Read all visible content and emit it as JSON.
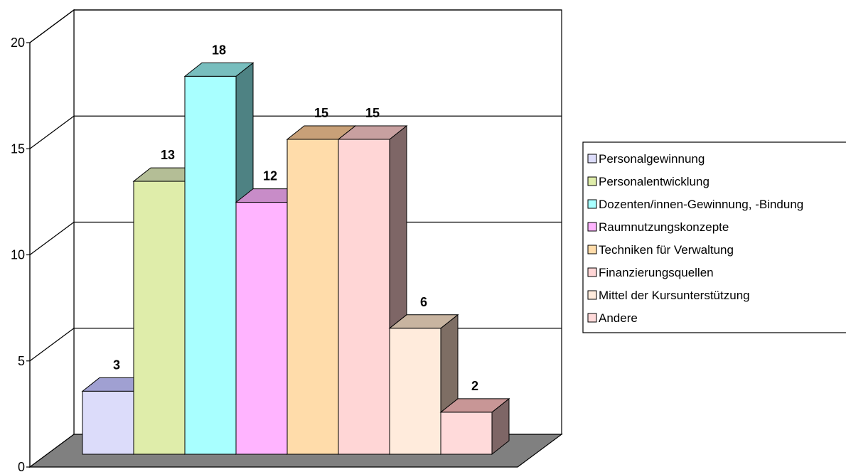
{
  "chart_data": {
    "type": "bar",
    "style": "3d-column",
    "title": "",
    "xlabel": "",
    "ylabel": "",
    "ylim": [
      0,
      20
    ],
    "yticks": [
      0,
      5,
      10,
      15,
      20
    ],
    "grid": true,
    "legend_position": "right",
    "categories": [
      "Personalgewinnung",
      "Personalentwicklung",
      "Dozenten/innen-Gewinnung, -Bindung",
      "Raumnutzungskonzepte",
      "Techniken für Verwaltung",
      "Finanzierungsquellen",
      "Mittel der Kursunterstützung",
      "Andere"
    ],
    "values": [
      3,
      13,
      18,
      12,
      15,
      15,
      6,
      2
    ],
    "colors": [
      "#DCDCFA",
      "#DFEDAA",
      "#A8FFFF",
      "#FFB4FF",
      "#FFDCAA",
      "#FFD6D6",
      "#FFEBDC",
      "#FFDADA"
    ],
    "side_colors": [
      "#8C8CB4",
      "#9AA078",
      "#4E8283",
      "#B48CB4",
      "#A08264",
      "#7E6666",
      "#7E6E64",
      "#7E6666"
    ],
    "top_colors": [
      "#A0A0D2",
      "#B4BE96",
      "#78BEBE",
      "#C88CC8",
      "#C8A078",
      "#C8A0A0",
      "#C8B4A0",
      "#C89696"
    ],
    "floor_color": "#808080",
    "wall_color": "#ffffff"
  }
}
